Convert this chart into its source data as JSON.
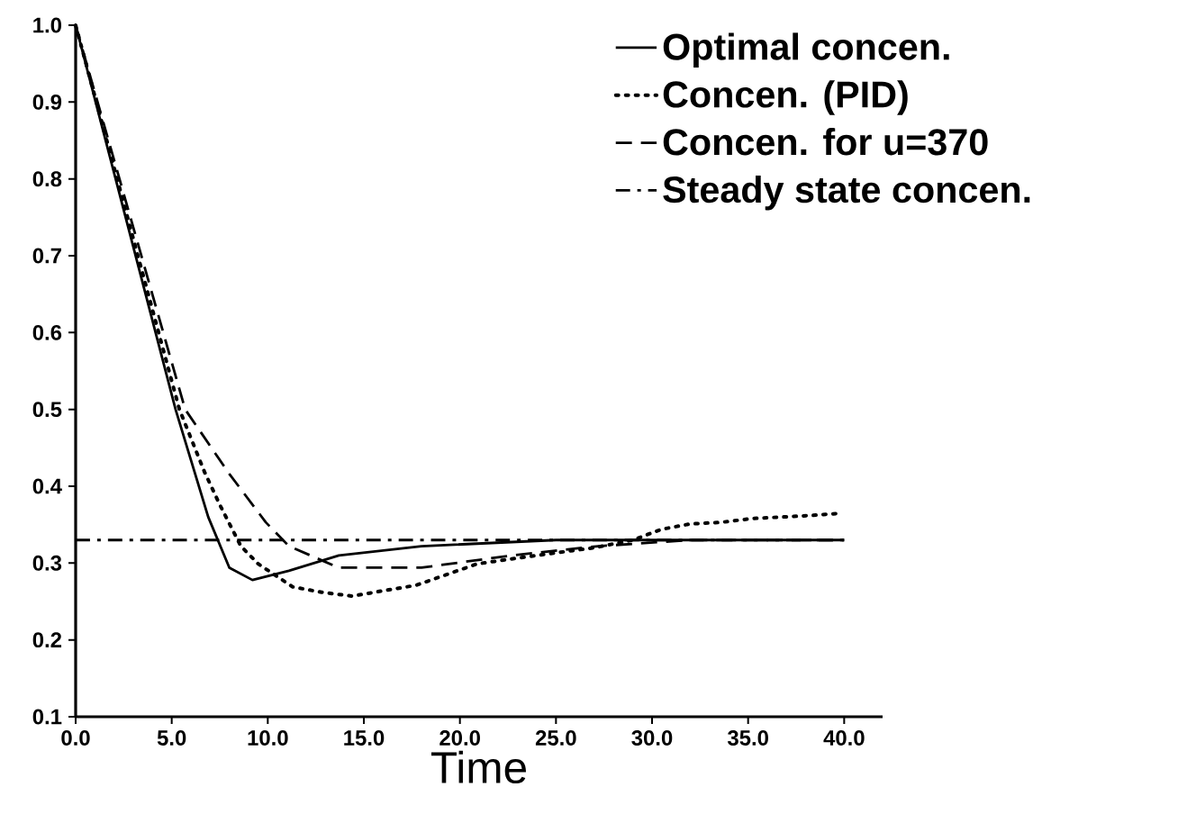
{
  "chart_data": {
    "type": "line",
    "xlabel": "Time",
    "xlim": [
      0,
      42
    ],
    "ylim": [
      0.1,
      1.0
    ],
    "xticks": [
      {
        "value": 0,
        "label": "0.0"
      },
      {
        "value": 5,
        "label": "5.0"
      },
      {
        "value": 10,
        "label": "10.0"
      },
      {
        "value": 15,
        "label": "15.0"
      },
      {
        "value": 20,
        "label": "20.0"
      },
      {
        "value": 25,
        "label": "25.0"
      },
      {
        "value": 30,
        "label": "30.0"
      },
      {
        "value": 35,
        "label": "35.0"
      },
      {
        "value": 40,
        "label": "40.0"
      }
    ],
    "yticks": [
      0.1,
      0.2,
      0.3,
      0.4,
      0.5,
      0.6,
      0.7,
      0.8,
      0.9,
      {
        "value": 1.0,
        "label": "1.0"
      }
    ],
    "legend": "top right",
    "grid": false,
    "series": [
      {
        "name": "Optimal concen.",
        "color": "#000000",
        "line_style": "solid",
        "x": [
          0,
          5.2,
          6.9,
          8.0,
          9.2,
          11.1,
          13.7,
          18,
          25,
          40
        ],
        "values": [
          1.0,
          0.5,
          0.36,
          0.294,
          0.278,
          0.29,
          0.31,
          0.322,
          0.33,
          0.33
        ]
      },
      {
        "name": "Concen. (PID)",
        "color": "#000000",
        "line_style": "dotted",
        "x": [
          0,
          5.4,
          6.7,
          7.5,
          8.6,
          9.5,
          11.3,
          12.8,
          14.4,
          16,
          17.7,
          19.3,
          20.9,
          24,
          27,
          29,
          30.5,
          32,
          33.6,
          35.2,
          36.8,
          38.3,
          39.9
        ],
        "values": [
          1.0,
          0.5,
          0.419,
          0.376,
          0.322,
          0.299,
          0.269,
          0.262,
          0.257,
          0.264,
          0.271,
          0.285,
          0.299,
          0.31,
          0.32,
          0.33,
          0.344,
          0.351,
          0.353,
          0.358,
          0.36,
          0.362,
          0.365
        ]
      },
      {
        "name": "Concen. for u=370",
        "color": "#000000",
        "line_style": "dashed",
        "x": [
          0,
          5.7,
          8.0,
          9.9,
          11.1,
          13.7,
          18,
          22.7,
          27.2,
          32,
          40
        ],
        "values": [
          1.0,
          0.5,
          0.416,
          0.353,
          0.322,
          0.294,
          0.294,
          0.31,
          0.322,
          0.33,
          0.33
        ]
      },
      {
        "name": "Steady state concen.",
        "color": "#000000",
        "line_style": "dashdotted",
        "x": [
          0,
          40
        ],
        "values": [
          0.33,
          0.33
        ]
      }
    ]
  }
}
